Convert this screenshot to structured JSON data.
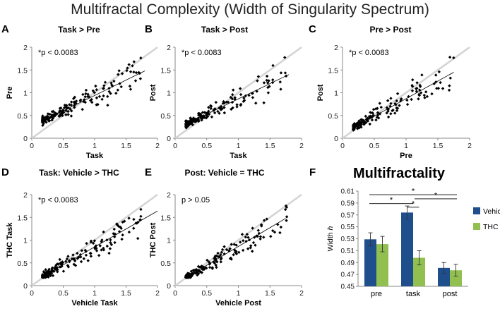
{
  "figure_title": "Multifractal Complexity (Width of Singularity Spectrum)",
  "colors": {
    "vehicle": "#1f4e8c",
    "thc": "#92c050",
    "identity": "#d4d4d4",
    "points": "#000000",
    "fit": "#000000",
    "axis": "#888888"
  },
  "chart_data": [
    {
      "panel": "A",
      "type": "scatter",
      "title": "Task > Pre",
      "annotation": "*p < 0.0083",
      "xlabel": "Task",
      "ylabel": "Pre",
      "xlim": [
        0,
        2
      ],
      "ylim": [
        0,
        2
      ],
      "xticks": [
        "0",
        "0.5",
        "1",
        "1.5",
        "2"
      ],
      "yticks": [
        "0",
        "0.5",
        "1",
        "1.5",
        "2"
      ],
      "identity_line": true,
      "fit_line": [
        [
          0.2,
          0.4
        ],
        [
          1.8,
          1.48
        ]
      ],
      "n_points": 170,
      "seed": 11
    },
    {
      "panel": "B",
      "type": "scatter",
      "title": "Task > Post",
      "annotation": "*p < 0.0083",
      "xlabel": "Task",
      "ylabel": "Post",
      "xlim": [
        0,
        2
      ],
      "ylim": [
        0,
        2
      ],
      "xticks": [
        "0",
        "0.5",
        "1",
        "1.5",
        "2"
      ],
      "yticks": [
        "0",
        "0.5",
        "1",
        "1.5",
        "2"
      ],
      "identity_line": true,
      "fit_line": [
        [
          0.2,
          0.33
        ],
        [
          1.8,
          1.4
        ]
      ],
      "n_points": 170,
      "seed": 23
    },
    {
      "panel": "C",
      "type": "scatter",
      "title": "Pre > Post",
      "annotation": "*p < 0.0083",
      "xlabel": "Pre",
      "ylabel": "Post",
      "xlim": [
        0,
        2
      ],
      "ylim": [
        0,
        2
      ],
      "xticks": [
        "0",
        "0.5",
        "1",
        "1.5",
        "2"
      ],
      "yticks": [
        "0",
        "0.5",
        "1",
        "1.5",
        "2"
      ],
      "identity_line": true,
      "fit_line": [
        [
          0.2,
          0.25
        ],
        [
          1.75,
          1.45
        ]
      ],
      "n_points": 170,
      "seed": 37
    },
    {
      "panel": "D",
      "type": "scatter",
      "title": "Task: Vehicle > THC",
      "annotation": "*p < 0.0083",
      "xlabel": "Vehicle Task",
      "ylabel": "THC Task",
      "xlim": [
        0,
        2
      ],
      "ylim": [
        0,
        2
      ],
      "xticks": [
        "0",
        "0.5",
        "1",
        "1.5",
        "2"
      ],
      "yticks": [
        "0",
        "0.5",
        "1",
        "1.5",
        "2"
      ],
      "identity_line": true,
      "fit_line": [
        [
          0.2,
          0.22
        ],
        [
          2.0,
          1.64
        ]
      ],
      "n_points": 175,
      "seed": 41
    },
    {
      "panel": "E",
      "type": "scatter",
      "title": "Post: Vehicle = THC",
      "annotation": "p > 0.05",
      "xlabel": "Vehicle Post",
      "ylabel": "THC Post",
      "xlim": [
        0,
        2
      ],
      "ylim": [
        0,
        2
      ],
      "xticks": [
        "0",
        "0.5",
        "1",
        "1.5",
        "2"
      ],
      "yticks": [
        "0",
        "0.5",
        "1",
        "1.5",
        "2"
      ],
      "identity_line": true,
      "fit_line": [
        [
          0.2,
          0.2
        ],
        [
          1.75,
          1.48
        ]
      ],
      "n_points": 170,
      "seed": 53
    },
    {
      "panel": "F",
      "type": "bar",
      "title": "Multifractality",
      "ylabel_main": "Width ",
      "ylabel_var": "h",
      "categories": [
        "pre",
        "task",
        "post"
      ],
      "series": [
        {
          "name": "Vehicle",
          "values": [
            0.529,
            0.574,
            0.481
          ],
          "errors": [
            0.011,
            0.011,
            0.009
          ]
        },
        {
          "name": "THC",
          "values": [
            0.521,
            0.498,
            0.477
          ],
          "errors": [
            0.013,
            0.012,
            0.01
          ]
        }
      ],
      "ylim": [
        0.45,
        0.61
      ],
      "yticks": [
        "0.61",
        "0.59",
        "0.57",
        "0.55",
        "0.53",
        "0.51",
        "0.49",
        "0.47",
        "0.45"
      ],
      "significance": [
        {
          "from": "pre",
          "to": "post",
          "label": "*"
        },
        {
          "from": "pre",
          "to": "task",
          "label": "*"
        },
        {
          "from": "task",
          "to": "post",
          "label": "*"
        },
        {
          "from": "task_vehicle",
          "to": "task_thc",
          "label": "*"
        }
      ]
    }
  ]
}
